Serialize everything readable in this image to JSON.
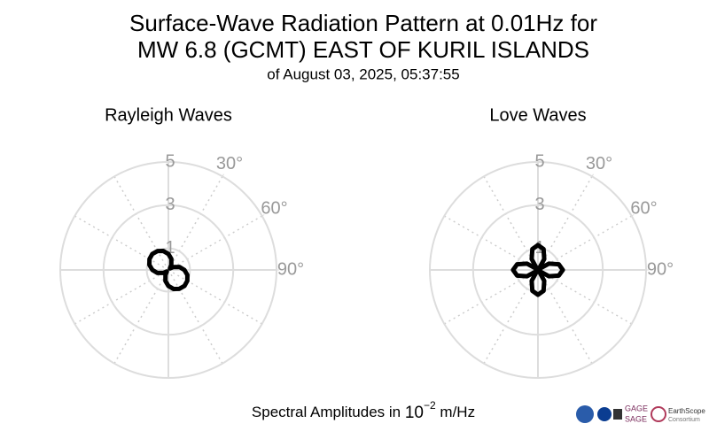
{
  "title": [
    "Surface-Wave Radiation Pattern at 0.01Hz for",
    "MW 6.8 (GCMT) EAST OF KURIL ISLANDS"
  ],
  "subtitle": "of August 03, 2025, 05:37:55",
  "footer": {
    "text": "Spectral Amplitudes in",
    "base": "10",
    "exponent": "−2",
    "unit": "m/Hz"
  },
  "logos": [
    "GAGE",
    "SAGE",
    "EarthScope",
    "Consortium"
  ],
  "chart_data": [
    {
      "type": "polar",
      "title": "Rayleigh Waves",
      "color": "#000000",
      "theta": [
        0,
        15,
        30,
        45,
        60,
        75,
        90,
        105,
        120,
        135,
        150,
        165,
        180,
        195,
        210,
        225,
        240,
        255,
        270,
        285,
        300,
        315,
        330,
        345
      ],
      "values": [
        0.74,
        0.53,
        0.27,
        0.1,
        0.27,
        0.53,
        0.74,
        0.91,
        1.01,
        1.05,
        1.01,
        0.91,
        0.74,
        0.53,
        0.27,
        0.1,
        0.27,
        0.53,
        0.74,
        0.91,
        1.01,
        1.05,
        1.01,
        0.91
      ],
      "rlim": [
        0,
        5
      ],
      "rticks": [
        1,
        3,
        5
      ],
      "thetaticks": [
        {
          "value": 30,
          "label": "30°"
        },
        {
          "value": 60,
          "label": "60°"
        },
        {
          "value": 90,
          "label": "90°"
        }
      ]
    },
    {
      "type": "polar",
      "title": "Love Waves",
      "color": "#000000",
      "theta": [
        0,
        15,
        30,
        45,
        60,
        75,
        90,
        105,
        120,
        135,
        150,
        165,
        180,
        195,
        210,
        225,
        240,
        255,
        270,
        285,
        300,
        315,
        330,
        345
      ],
      "values": [
        1.15,
        1.0,
        0.58,
        0.05,
        0.58,
        1.0,
        1.15,
        1.0,
        0.58,
        0.05,
        0.58,
        1.0,
        1.15,
        1.0,
        0.58,
        0.05,
        0.58,
        1.0,
        1.15,
        1.0,
        0.58,
        0.05,
        0.58,
        1.0
      ],
      "rlim": [
        0,
        5
      ],
      "rticks": [
        1,
        3,
        5
      ],
      "thetaticks": [
        {
          "value": 30,
          "label": "30°"
        },
        {
          "value": 60,
          "label": "60°"
        },
        {
          "value": 90,
          "label": "90°"
        }
      ]
    }
  ]
}
